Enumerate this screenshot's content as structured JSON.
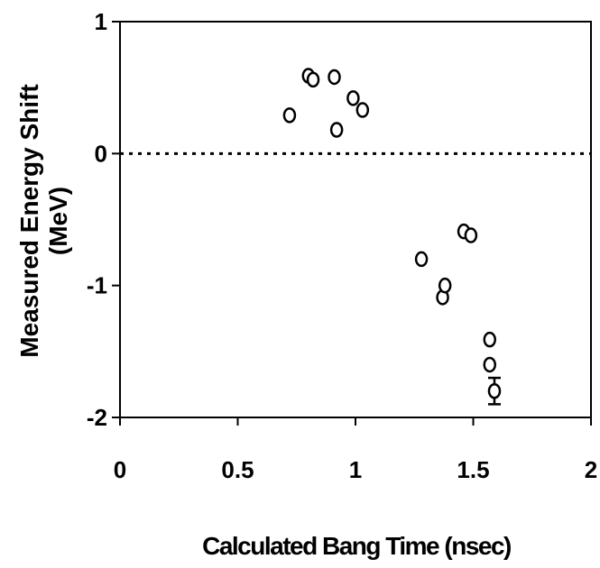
{
  "chart_data": {
    "type": "scatter",
    "title": "",
    "xlabel": "Calculated Bang Time (nsec)",
    "ylabel_line1": "Measured Energy Shift",
    "ylabel_line2": "(MeV)",
    "xlim": [
      0,
      2
    ],
    "ylim": [
      -2,
      1
    ],
    "x_ticks": [
      0,
      0.5,
      1,
      1.5,
      2
    ],
    "x_tick_labels": [
      "0",
      "0.5",
      "1",
      "1.5",
      "2"
    ],
    "y_ticks": [
      1,
      0,
      -1,
      -2
    ],
    "y_tick_labels": [
      "1",
      "0",
      "-1",
      "-2"
    ],
    "grid": false,
    "legend": "none",
    "reference_line": {
      "y": 0,
      "style": "dotted"
    },
    "marker": "open-circle",
    "points": [
      {
        "x": 0.72,
        "y": 0.29
      },
      {
        "x": 0.8,
        "y": 0.59
      },
      {
        "x": 0.82,
        "y": 0.56
      },
      {
        "x": 0.91,
        "y": 0.58
      },
      {
        "x": 0.92,
        "y": 0.18
      },
      {
        "x": 0.99,
        "y": 0.42
      },
      {
        "x": 1.03,
        "y": 0.33
      },
      {
        "x": 1.28,
        "y": -0.8
      },
      {
        "x": 1.37,
        "y": -1.09
      },
      {
        "x": 1.38,
        "y": -1.0
      },
      {
        "x": 1.46,
        "y": -0.59
      },
      {
        "x": 1.49,
        "y": -0.62
      },
      {
        "x": 1.57,
        "y": -1.41
      },
      {
        "x": 1.57,
        "y": -1.6
      },
      {
        "x": 1.59,
        "y": -1.8,
        "yerr": 0.1
      }
    ]
  }
}
